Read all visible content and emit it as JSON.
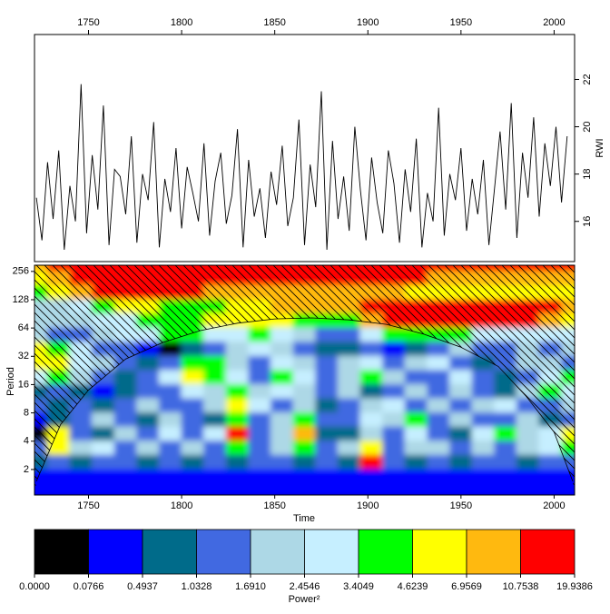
{
  "chart_data": [
    {
      "type": "line",
      "ylabel": "RWI",
      "color": "#000000",
      "xlim": [
        1721,
        2011
      ],
      "xticks": [
        1750,
        1800,
        1850,
        1900,
        1950,
        2000
      ],
      "ylim": [
        14.3,
        23.9
      ],
      "yticks": [
        16,
        18,
        20,
        22
      ],
      "x": [
        1722,
        1725,
        1728,
        1731,
        1734,
        1737,
        1740,
        1743,
        1746,
        1749,
        1752,
        1755,
        1758,
        1761,
        1764,
        1767,
        1770,
        1773,
        1776,
        1779,
        1782,
        1785,
        1788,
        1791,
        1794,
        1797,
        1800,
        1803,
        1806,
        1809,
        1812,
        1815,
        1818,
        1821,
        1824,
        1827,
        1830,
        1833,
        1836,
        1839,
        1842,
        1845,
        1848,
        1851,
        1854,
        1857,
        1860,
        1863,
        1866,
        1869,
        1872,
        1875,
        1878,
        1881,
        1884,
        1887,
        1890,
        1893,
        1896,
        1899,
        1902,
        1905,
        1908,
        1911,
        1914,
        1917,
        1920,
        1923,
        1926,
        1929,
        1932,
        1935,
        1938,
        1941,
        1944,
        1947,
        1950,
        1953,
        1956,
        1959,
        1962,
        1965,
        1968,
        1971,
        1974,
        1977,
        1980,
        1983,
        1986,
        1989,
        1992,
        1995,
        1998,
        2001,
        2004,
        2007
      ],
      "values": [
        17.0,
        15.2,
        18.5,
        16.1,
        19.0,
        14.8,
        17.5,
        16.0,
        21.8,
        15.5,
        18.8,
        16.5,
        20.9,
        15.0,
        18.2,
        17.9,
        16.3,
        19.6,
        15.1,
        18.0,
        16.9,
        20.2,
        14.9,
        17.8,
        16.4,
        19.1,
        15.7,
        18.3,
        17.2,
        16.0,
        19.3,
        15.4,
        17.7,
        18.9,
        15.9,
        17.1,
        19.9,
        14.9,
        18.6,
        16.2,
        17.4,
        15.3,
        18.1,
        16.7,
        19.2,
        15.8,
        17.0,
        20.3,
        15.0,
        18.4,
        16.6,
        21.5,
        14.8,
        19.4,
        16.1,
        17.9,
        15.6,
        20.0,
        17.3,
        15.2,
        18.7,
        16.8,
        15.5,
        19.0,
        17.6,
        15.1,
        18.2,
        16.4,
        19.5,
        14.9,
        17.2,
        16.0,
        20.8,
        15.4,
        18.0,
        16.9,
        19.1,
        15.6,
        17.8,
        16.3,
        18.6,
        15.0,
        17.4,
        19.8,
        16.5,
        21.0,
        15.3,
        18.9,
        17.0,
        20.4,
        16.2,
        19.3,
        17.5,
        20.0,
        16.8,
        19.6
      ]
    },
    {
      "type": "heatmap",
      "xlabel": "Time",
      "ylabel": "Period",
      "log_y": true,
      "xlim": [
        1721,
        2011
      ],
      "xticks": [
        1750,
        1800,
        1850,
        1900,
        1950,
        2000
      ],
      "ylim": [
        1.07,
        298
      ],
      "yticks": [
        2,
        4,
        8,
        16,
        32,
        64,
        128,
        256
      ],
      "grid_x": [
        1722,
        1734,
        1746,
        1758,
        1770,
        1782,
        1794,
        1806,
        1818,
        1830,
        1842,
        1854,
        1866,
        1878,
        1890,
        1902,
        1914,
        1926,
        1938,
        1950,
        1962,
        1974,
        1986,
        1998,
        2010
      ],
      "grid_y": [
        256,
        181,
        128,
        90.5,
        64,
        45.3,
        32,
        22.6,
        16,
        11.3,
        8,
        5.66,
        4,
        2.83,
        2,
        1.41
      ],
      "grid": [
        [
          8,
          9,
          9,
          9,
          9,
          9,
          9,
          9,
          9,
          9,
          9,
          9,
          9,
          9,
          9,
          9,
          9,
          9,
          9,
          9,
          9,
          9,
          9,
          9,
          9
        ],
        [
          7,
          8,
          9,
          9,
          9,
          9,
          9,
          9,
          9,
          9,
          9,
          9,
          9,
          9,
          9,
          9,
          9,
          9,
          8,
          8,
          8,
          8,
          8,
          8,
          8
        ],
        [
          6,
          7,
          8,
          9,
          9,
          9,
          9,
          9,
          8,
          8,
          8,
          8,
          8,
          8,
          8,
          8,
          8,
          7,
          7,
          7,
          7,
          7,
          7,
          7,
          7
        ],
        [
          4,
          4,
          5,
          6,
          7,
          7,
          6,
          6,
          6,
          7,
          7,
          8,
          8,
          8,
          8,
          9,
          9,
          9,
          9,
          9,
          9,
          9,
          9,
          9,
          8
        ],
        [
          4,
          4,
          4,
          5,
          5,
          6,
          6,
          6,
          7,
          7,
          7,
          7,
          6,
          6,
          6,
          8,
          9,
          9,
          9,
          9,
          9,
          9,
          9,
          8,
          7
        ],
        [
          4,
          3,
          3,
          4,
          5,
          5,
          6,
          6,
          5,
          5,
          6,
          5,
          4,
          3,
          3,
          5,
          6,
          6,
          6,
          6,
          5,
          5,
          5,
          5,
          5
        ],
        [
          7,
          6,
          5,
          3,
          3,
          1,
          0,
          2,
          3,
          4,
          5,
          4,
          3,
          2,
          2,
          3,
          1,
          2,
          3,
          4,
          3,
          3,
          4,
          3,
          4
        ],
        [
          7,
          7,
          5,
          4,
          3,
          2,
          3,
          6,
          6,
          4,
          3,
          5,
          4,
          3,
          4,
          5,
          3,
          4,
          5,
          3,
          2,
          3,
          4,
          4,
          3
        ],
        [
          5,
          6,
          4,
          3,
          2,
          3,
          5,
          7,
          6,
          5,
          3,
          6,
          5,
          3,
          4,
          6,
          4,
          3,
          3,
          5,
          3,
          2,
          3,
          5,
          6
        ],
        [
          2,
          3,
          2,
          1,
          2,
          3,
          3,
          5,
          4,
          6,
          4,
          5,
          4,
          3,
          4,
          2,
          3,
          4,
          3,
          4,
          3,
          2,
          4,
          6,
          5
        ],
        [
          3,
          2,
          3,
          2,
          3,
          4,
          3,
          3,
          4,
          7,
          5,
          3,
          4,
          2,
          3,
          4,
          5,
          3,
          4,
          3,
          4,
          5,
          3,
          3,
          4
        ],
        [
          1,
          2,
          3,
          4,
          3,
          2,
          4,
          3,
          2,
          6,
          3,
          4,
          6,
          3,
          3,
          5,
          4,
          6,
          3,
          4,
          3,
          3,
          4,
          2,
          3
        ],
        [
          0,
          7,
          3,
          2,
          4,
          3,
          5,
          3,
          5,
          9,
          3,
          4,
          8,
          2,
          2,
          4,
          3,
          5,
          3,
          2,
          5,
          6,
          4,
          5,
          7
        ],
        [
          3,
          7,
          4,
          5,
          3,
          4,
          3,
          4,
          3,
          6,
          3,
          4,
          6,
          3,
          4,
          7,
          3,
          4,
          4,
          3,
          4,
          3,
          4,
          5,
          6
        ],
        [
          2,
          3,
          2,
          3,
          3,
          2,
          3,
          2,
          3,
          2,
          3,
          3,
          2,
          3,
          2,
          9,
          3,
          2,
          3,
          2,
          3,
          3,
          2,
          3,
          3
        ],
        [
          1,
          1,
          1,
          1,
          1,
          1,
          1,
          1,
          1,
          1,
          1,
          1,
          1,
          1,
          1,
          1,
          1,
          1,
          1,
          1,
          1,
          1,
          1,
          1,
          1
        ]
      ],
      "coi": {
        "x": [
          1722,
          1735,
          1750,
          1770,
          1790,
          1810,
          1830,
          1850,
          1870,
          1890,
          1910,
          1930,
          1950,
          1970,
          1985,
          2000,
          2010
        ],
        "y": [
          1.5,
          6,
          14,
          30,
          45,
          60,
          72,
          80,
          82,
          78,
          70,
          55,
          40,
          25,
          12,
          5,
          1.5
        ]
      },
      "colors": [
        "#000000",
        "#0000ff",
        "#006b8a",
        "#4169e1",
        "#add8e6",
        "#c6efff",
        "#00ff00",
        "#ffff00",
        "#ffb90f",
        "#ff0000"
      ],
      "levels": [
        {
          "value": 0,
          "label": "0.0000"
        },
        {
          "value": 0.0766,
          "label": "0.0766"
        },
        {
          "value": 0.4937,
          "label": "0.4937"
        },
        {
          "value": 1.0328,
          "label": "1.0328"
        },
        {
          "value": 1.691,
          "label": "1.6910"
        },
        {
          "value": 2.4546,
          "label": "2.4546"
        },
        {
          "value": 3.4049,
          "label": "3.4049"
        },
        {
          "value": 4.6239,
          "label": "4.6239"
        },
        {
          "value": 6.9569,
          "label": "6.9569"
        },
        {
          "value": 10.7538,
          "label": "10.7538"
        },
        {
          "value": 19.9386,
          "label": "19.9386"
        }
      ],
      "colorbar_label": "Power²"
    }
  ]
}
